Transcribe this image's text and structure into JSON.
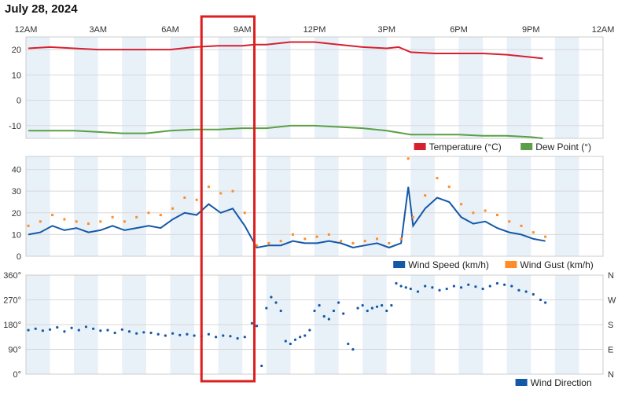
{
  "page": {
    "date": "July 28, 2024"
  },
  "colors": {
    "temperature": "#d62030",
    "dew_point": "#5aa046",
    "wind_speed": "#1458a8",
    "wind_gust": "#ff8c28",
    "wind_direction": "#1458a8",
    "highlight_box": "#dc1e1e",
    "band": "#e8f0f8"
  },
  "highlight": {
    "label": "",
    "x_range_hours": [
      7.3,
      9.5
    ]
  },
  "chart_data": [
    {
      "type": "line",
      "name": "temperature-dewpoint",
      "xlabel": "",
      "ylabel": "",
      "x_ticks": [
        "12AM",
        "3AM",
        "6AM",
        "9AM",
        "12PM",
        "3PM",
        "6PM",
        "9PM",
        "12AM"
      ],
      "xlim_hours": [
        0,
        24
      ],
      "ylim": [
        -15,
        25
      ],
      "y_ticks": [
        "20",
        "10",
        "0",
        "-10"
      ],
      "y_tick_values": [
        20,
        10,
        0,
        -10
      ],
      "legend": [
        {
          "label": "Temperature (°C)",
          "color": "#d62030"
        },
        {
          "label": "Dew Point (°)",
          "color": "#5aa046"
        }
      ],
      "series": [
        {
          "name": "Temperature (°C)",
          "color": "#d62030",
          "x": [
            0.1,
            1,
            2,
            3,
            4,
            5,
            6,
            7,
            8,
            9,
            9.5,
            10,
            11,
            12,
            13,
            14,
            15,
            15.5,
            16,
            17,
            18,
            19,
            20,
            21,
            21.5
          ],
          "y": [
            20.5,
            21,
            20.5,
            20,
            20,
            20,
            20,
            21,
            21.5,
            21.5,
            22,
            22,
            23,
            23,
            22,
            21,
            20.5,
            21,
            19,
            18.5,
            18.5,
            18.5,
            18,
            17,
            16.5
          ]
        },
        {
          "name": "Dew Point (°)",
          "color": "#5aa046",
          "x": [
            0.1,
            1,
            2,
            3,
            4,
            5,
            6,
            7,
            8,
            9,
            10,
            11,
            12,
            13,
            14,
            15,
            16,
            17,
            18,
            19,
            20,
            21,
            21.5
          ],
          "y": [
            -12,
            -12,
            -12,
            -12.5,
            -13,
            -13,
            -12,
            -11.5,
            -11.5,
            -11,
            -11,
            -10,
            -10,
            -10.5,
            -11,
            -12,
            -13.5,
            -13.5,
            -13.5,
            -14,
            -14,
            -14.5,
            -15
          ]
        }
      ]
    },
    {
      "type": "line",
      "name": "wind-speed-gust",
      "xlabel": "",
      "ylabel": "",
      "xlim_hours": [
        0,
        24
      ],
      "ylim": [
        0,
        46
      ],
      "y_ticks": [
        "40",
        "30",
        "20",
        "10",
        "0"
      ],
      "y_tick_values": [
        40,
        30,
        20,
        10,
        0
      ],
      "legend": [
        {
          "label": "Wind Speed (km/h)",
          "color": "#1458a8"
        },
        {
          "label": "Wind Gust (km/h)",
          "color": "#ff8c28"
        }
      ],
      "series": [
        {
          "name": "Wind Speed (km/h)",
          "color": "#1458a8",
          "x": [
            0.1,
            0.6,
            1.1,
            1.6,
            2.1,
            2.6,
            3.1,
            3.6,
            4.1,
            4.6,
            5.1,
            5.6,
            6.1,
            6.6,
            7.1,
            7.6,
            8.1,
            8.6,
            9.1,
            9.6,
            10.1,
            10.6,
            11.1,
            11.6,
            12.1,
            12.6,
            13.1,
            13.6,
            14.1,
            14.6,
            15.1,
            15.6,
            15.9,
            16.1,
            16.6,
            17.1,
            17.6,
            18.1,
            18.6,
            19.1,
            19.6,
            20.1,
            20.6,
            21.1,
            21.6
          ],
          "y": [
            10,
            11,
            14,
            12,
            13,
            11,
            12,
            14,
            12,
            13,
            14,
            13,
            17,
            20,
            19,
            24,
            20,
            22,
            14,
            4,
            5,
            5,
            7,
            6,
            6,
            7,
            6,
            4,
            5,
            6,
            4,
            6,
            32,
            14,
            22,
            27,
            25,
            18,
            15,
            16,
            13,
            11,
            10,
            8,
            7
          ]
        },
        {
          "name": "Wind Gust (km/h)",
          "color": "#ff8c28",
          "x": [
            0.1,
            0.6,
            1.1,
            1.6,
            2.1,
            2.6,
            3.1,
            3.6,
            4.1,
            4.6,
            5.1,
            5.6,
            6.1,
            6.6,
            7.1,
            7.6,
            8.1,
            8.6,
            9.1,
            9.6,
            10.1,
            10.6,
            11.1,
            11.6,
            12.1,
            12.6,
            13.1,
            13.6,
            14.1,
            14.6,
            15.1,
            15.6,
            15.9,
            16.1,
            16.6,
            17.1,
            17.6,
            18.1,
            18.6,
            19.1,
            19.6,
            20.1,
            20.6,
            21.1,
            21.6
          ],
          "y": [
            14,
            16,
            19,
            17,
            16,
            15,
            16,
            18,
            16,
            18,
            20,
            19,
            22,
            27,
            26,
            32,
            29,
            30,
            20,
            5,
            6,
            7,
            10,
            8,
            9,
            10,
            7,
            6,
            7,
            8,
            6,
            8,
            45,
            18,
            28,
            36,
            32,
            24,
            20,
            21,
            19,
            16,
            14,
            11,
            9
          ]
        }
      ]
    },
    {
      "type": "scatter",
      "name": "wind-direction",
      "xlabel": "",
      "ylabel": "",
      "xlim_hours": [
        0,
        24
      ],
      "ylim": [
        0,
        360
      ],
      "y_ticks": [
        "360°",
        "270°",
        "180°",
        "90°",
        "0°"
      ],
      "y_tick_values": [
        360,
        270,
        180,
        90,
        0
      ],
      "y_ticks_right": [
        "N",
        "W",
        "S",
        "E",
        "N"
      ],
      "legend": [
        {
          "label": "Wind Direction",
          "color": "#1458a8"
        }
      ],
      "series": [
        {
          "name": "Wind Direction",
          "color": "#1458a8",
          "x": [
            0.1,
            0.4,
            0.7,
            1,
            1.3,
            1.6,
            1.9,
            2.2,
            2.5,
            2.8,
            3.1,
            3.4,
            3.7,
            4,
            4.3,
            4.6,
            4.9,
            5.2,
            5.5,
            5.8,
            6.1,
            6.4,
            6.7,
            7,
            7.3,
            7.6,
            7.9,
            8.2,
            8.5,
            8.8,
            9.1,
            9.4,
            9.6,
            9.8,
            10,
            10.2,
            10.4,
            10.6,
            10.8,
            11,
            11.2,
            11.4,
            11.6,
            11.8,
            12,
            12.2,
            12.4,
            12.6,
            12.8,
            13,
            13.2,
            13.4,
            13.6,
            13.8,
            14,
            14.2,
            14.4,
            14.6,
            14.8,
            15,
            15.2,
            15.4,
            15.6,
            15.8,
            16,
            16.3,
            16.6,
            16.9,
            17.2,
            17.5,
            17.8,
            18.1,
            18.4,
            18.7,
            19,
            19.3,
            19.6,
            19.9,
            20.2,
            20.5,
            20.8,
            21.1,
            21.4,
            21.6
          ],
          "y": [
            160,
            165,
            158,
            162,
            170,
            155,
            168,
            160,
            172,
            165,
            158,
            160,
            150,
            162,
            155,
            148,
            152,
            150,
            145,
            140,
            148,
            142,
            145,
            140,
            138,
            145,
            135,
            140,
            138,
            130,
            135,
            185,
            175,
            30,
            240,
            280,
            260,
            230,
            120,
            110,
            125,
            135,
            140,
            160,
            230,
            250,
            210,
            200,
            230,
            260,
            220,
            110,
            90,
            240,
            250,
            230,
            240,
            245,
            250,
            230,
            250,
            330,
            320,
            315,
            310,
            300,
            320,
            315,
            305,
            310,
            320,
            315,
            325,
            318,
            310,
            320,
            330,
            325,
            320,
            305,
            300,
            290,
            270,
            260
          ]
        }
      ]
    }
  ]
}
